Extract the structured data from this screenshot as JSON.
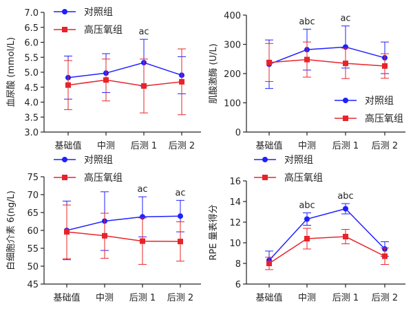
{
  "chart_data": [
    {
      "type": "line",
      "ylabel": "血尿酸 (mmol/L)",
      "categories": [
        "基础值",
        "中测",
        "后测 1",
        "后测 2"
      ],
      "ylim": [
        3.0,
        7.0
      ],
      "yticks": [
        3.0,
        3.5,
        4.0,
        4.5,
        5.0,
        5.5,
        6.0,
        6.5,
        7.0
      ],
      "tick_decimals": 1,
      "legend_position": "top-left",
      "series": [
        {
          "name": "对照组",
          "color": "#1f1fff",
          "marker": "circle",
          "values": [
            4.82,
            4.97,
            5.32,
            4.9
          ],
          "errors": [
            0.72,
            0.65,
            0.78,
            0.62
          ]
        },
        {
          "name": "高压氧组",
          "color": "#e8232a",
          "marker": "square",
          "values": [
            4.57,
            4.74,
            4.54,
            4.68
          ],
          "errors": [
            0.82,
            0.7,
            0.9,
            1.1
          ]
        }
      ],
      "annotations": [
        {
          "category": 2,
          "text": "ac"
        }
      ]
    },
    {
      "type": "line",
      "ylabel": "肌酸激酶 (U/L)",
      "categories": [
        "基础值",
        "中测",
        "后测 1",
        "后测 2"
      ],
      "ylim": [
        0,
        400
      ],
      "yticks": [
        0,
        100,
        200,
        300,
        400
      ],
      "tick_decimals": 0,
      "legend_position": "bottom-right",
      "series": [
        {
          "name": "对照组",
          "color": "#1f1fff",
          "marker": "circle",
          "values": [
            232,
            282,
            291,
            254
          ],
          "errors": [
            83,
            70,
            72,
            54
          ]
        },
        {
          "name": "高压氧组",
          "color": "#e8232a",
          "marker": "square",
          "values": [
            238,
            248,
            235,
            226
          ],
          "errors": [
            65,
            60,
            52,
            42
          ]
        }
      ],
      "annotations": [
        {
          "category": 1,
          "text": "abc"
        },
        {
          "category": 2,
          "text": "ac"
        }
      ]
    },
    {
      "type": "line",
      "ylabel": "白细胞介素 6(ng/L)",
      "categories": [
        "基础值",
        "中测",
        "后测 1",
        "后测 2"
      ],
      "ylim": [
        45,
        75
      ],
      "yticks": [
        45,
        50,
        55,
        60,
        65,
        70,
        75
      ],
      "tick_decimals": 0,
      "legend_position": "top",
      "series": [
        {
          "name": "对照组",
          "color": "#1f1fff",
          "marker": "circle",
          "values": [
            60.0,
            62.6,
            63.8,
            64.0
          ],
          "errors": [
            8.2,
            8.2,
            5.6,
            4.4
          ]
        },
        {
          "name": "高压氧组",
          "color": "#e8232a",
          "marker": "square",
          "values": [
            59.6,
            58.5,
            57.0,
            56.9
          ],
          "errors": [
            7.5,
            6.3,
            6.5,
            5.5
          ]
        }
      ],
      "annotations": [
        {
          "category": 2,
          "text": "ac"
        },
        {
          "category": 3,
          "text": "ac"
        }
      ]
    },
    {
      "type": "line",
      "ylabel": "RPE 量表得分",
      "categories": [
        "基础值",
        "中测",
        "后测 1",
        "后测 2"
      ],
      "ylim": [
        6,
        16
      ],
      "yticks": [
        6,
        8,
        10,
        12,
        14,
        16
      ],
      "tick_decimals": 0,
      "legend_position": "top",
      "series": [
        {
          "name": "对照组",
          "color": "#1f1fff",
          "marker": "circle",
          "values": [
            8.3,
            12.3,
            13.3,
            9.4
          ],
          "errors": [
            0.9,
            0.6,
            0.5,
            0.7
          ]
        },
        {
          "name": "高压氧组",
          "color": "#e8232a",
          "marker": "square",
          "values": [
            8.0,
            10.4,
            10.6,
            8.7
          ],
          "errors": [
            0.6,
            1.0,
            0.7,
            0.8
          ]
        }
      ],
      "annotations": [
        {
          "category": 1,
          "text": "abc"
        },
        {
          "category": 2,
          "text": "abc"
        }
      ]
    }
  ]
}
